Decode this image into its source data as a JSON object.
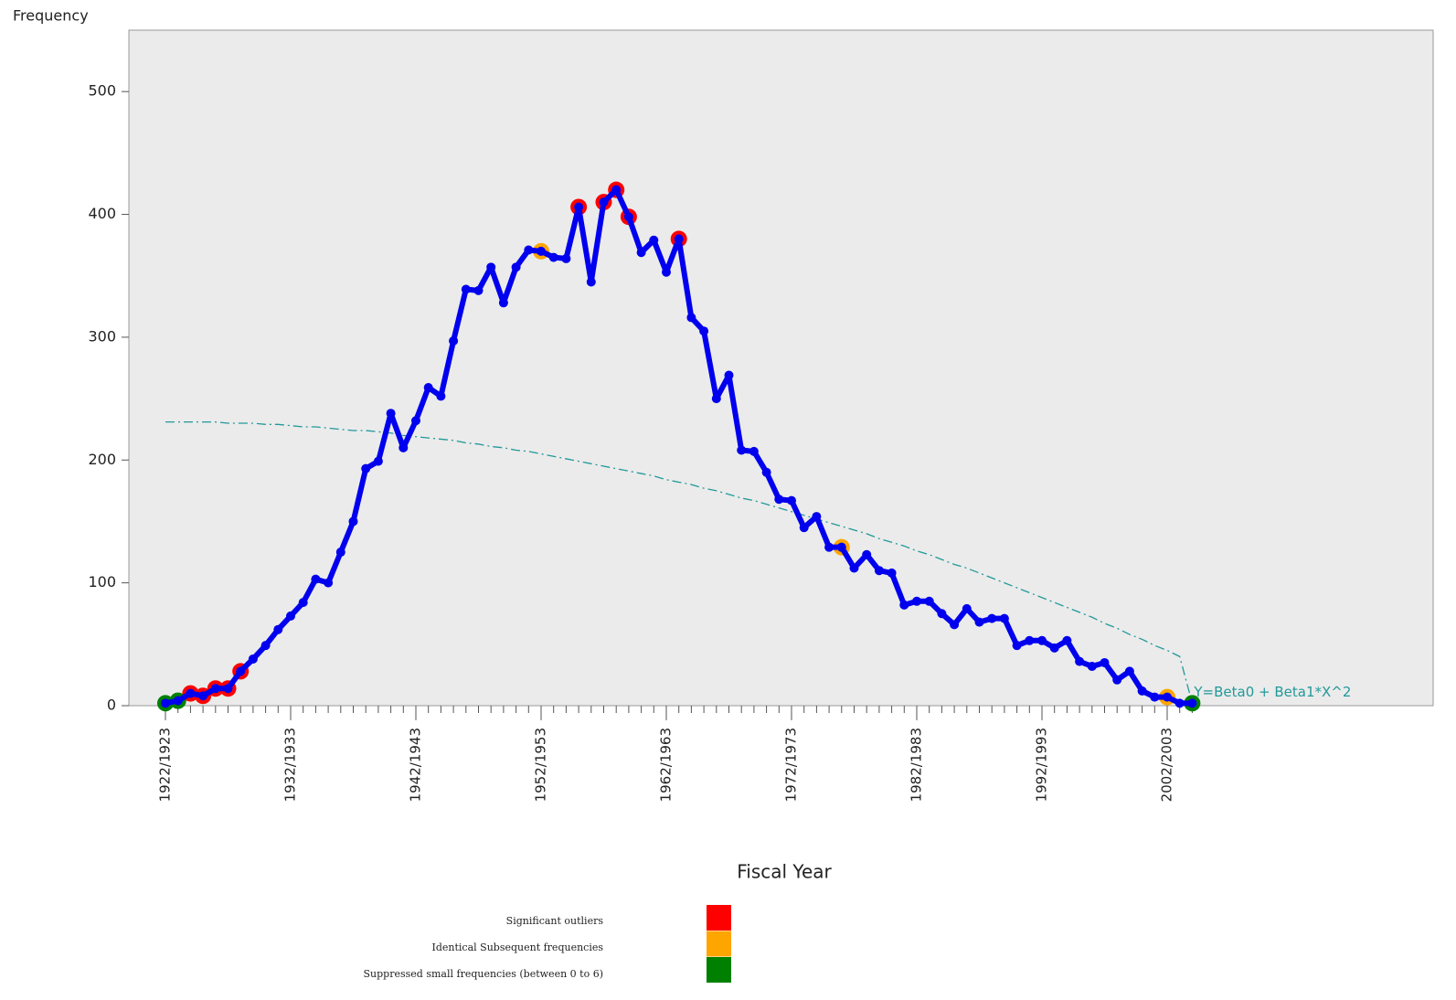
{
  "chart_data": {
    "type": "line",
    "y_label": "Frequency",
    "x_label": "Fiscal Year",
    "categories": [
      "1922/1923",
      null,
      null,
      null,
      null,
      null,
      null,
      null,
      null,
      null,
      "1932/1933",
      null,
      null,
      null,
      null,
      null,
      null,
      null,
      null,
      null,
      "1942/1943",
      null,
      null,
      null,
      null,
      null,
      null,
      null,
      null,
      null,
      "1952/1953",
      null,
      null,
      null,
      null,
      null,
      null,
      null,
      null,
      null,
      "1962/1963",
      null,
      null,
      null,
      null,
      null,
      null,
      null,
      null,
      null,
      "1972/1973",
      null,
      null,
      null,
      null,
      null,
      null,
      null,
      null,
      null,
      "1982/1983",
      null,
      null,
      null,
      null,
      null,
      null,
      null,
      null,
      null,
      "1992/1993",
      null,
      null,
      null,
      null,
      null,
      null,
      null,
      null,
      null,
      "2002/2003",
      null,
      null
    ],
    "values": [
      2,
      4,
      10,
      8,
      14,
      14,
      28,
      38,
      49,
      62,
      73,
      84,
      103,
      100,
      125,
      150,
      193,
      199,
      238,
      210,
      232,
      259,
      252,
      297,
      339,
      338,
      357,
      328,
      357,
      371,
      370,
      365,
      364,
      406,
      345,
      410,
      420,
      398,
      369,
      379,
      353,
      380,
      316,
      305,
      250,
      269,
      208,
      207,
      190,
      168,
      167,
      145,
      154,
      129,
      129,
      112,
      123,
      110,
      108,
      82,
      85,
      85,
      75,
      66,
      79,
      68,
      71,
      71,
      49,
      53,
      53,
      47,
      53,
      36,
      32,
      35,
      21,
      28,
      12,
      7,
      7,
      2,
      2
    ],
    "color": "#0000ee",
    "series": [
      {
        "name": "Significant outliers",
        "color": "#ff0000",
        "values": [
          null,
          null,
          10,
          8,
          14,
          14,
          28,
          null,
          null,
          null,
          null,
          null,
          null,
          null,
          null,
          null,
          null,
          null,
          null,
          null,
          null,
          null,
          null,
          null,
          null,
          null,
          null,
          null,
          null,
          null,
          null,
          null,
          null,
          406,
          null,
          410,
          420,
          398,
          null,
          null,
          null,
          380,
          null,
          null,
          null,
          null,
          null,
          null,
          null,
          null,
          null,
          null,
          null,
          null,
          null,
          null,
          null,
          null,
          null,
          null,
          null,
          null,
          null,
          null,
          null,
          null,
          null,
          null,
          null,
          null,
          null,
          null,
          null,
          null,
          null,
          null,
          null,
          null,
          null,
          null,
          null,
          null,
          null
        ]
      },
      {
        "name": "Identical Subsequent frequencies",
        "color": "#ffa500",
        "values": [
          null,
          null,
          null,
          null,
          null,
          null,
          null,
          null,
          null,
          null,
          null,
          null,
          null,
          null,
          null,
          null,
          null,
          null,
          null,
          null,
          null,
          null,
          null,
          null,
          null,
          null,
          null,
          null,
          null,
          null,
          370,
          null,
          null,
          null,
          null,
          null,
          null,
          null,
          null,
          null,
          null,
          null,
          null,
          null,
          null,
          null,
          null,
          null,
          null,
          null,
          null,
          null,
          null,
          null,
          129,
          null,
          null,
          null,
          null,
          null,
          null,
          null,
          null,
          null,
          null,
          null,
          null,
          null,
          null,
          null,
          null,
          null,
          null,
          null,
          null,
          null,
          null,
          null,
          null,
          null,
          7,
          null,
          null
        ]
      },
      {
        "name": "Suppressed small frequencies (between 0 to 6)",
        "color": "#008000",
        "values": [
          2,
          4,
          null,
          null,
          null,
          null,
          null,
          null,
          null,
          null,
          null,
          null,
          null,
          null,
          null,
          null,
          null,
          null,
          null,
          null,
          null,
          null,
          null,
          null,
          null,
          null,
          null,
          null,
          null,
          null,
          null,
          null,
          null,
          null,
          null,
          null,
          null,
          null,
          null,
          null,
          null,
          null,
          null,
          null,
          null,
          null,
          null,
          null,
          null,
          null,
          null,
          null,
          null,
          null,
          null,
          null,
          null,
          null,
          null,
          null,
          null,
          null,
          null,
          null,
          null,
          null,
          null,
          null,
          null,
          null,
          null,
          null,
          null,
          null,
          null,
          null,
          null,
          null,
          null,
          null,
          null,
          null,
          2
        ]
      }
    ],
    "fit_line": {
      "label": "Y=Beta0 + Beta1*X^2",
      "color": "#229999",
      "values": [
        231,
        231,
        231,
        231,
        231,
        230,
        230,
        230,
        229,
        229,
        228,
        227,
        227,
        226,
        225,
        224,
        224,
        223,
        222,
        220,
        219,
        218,
        217,
        216,
        214,
        213,
        211,
        210,
        208,
        207,
        205,
        203,
        201,
        199,
        197,
        195,
        193,
        191,
        189,
        187,
        184,
        182,
        180,
        177,
        175,
        172,
        169,
        167,
        164,
        161,
        158,
        155,
        152,
        149,
        146,
        143,
        140,
        136,
        133,
        130,
        126,
        123,
        119,
        115,
        112,
        108,
        104,
        100,
        96,
        92,
        88,
        84,
        80,
        76,
        72,
        67,
        63,
        58,
        54,
        49,
        45,
        40,
        2
      ]
    },
    "ylim": [
      0,
      550
    ],
    "yticks": [
      0,
      100,
      200,
      300,
      400,
      500
    ],
    "background": "#ebebeb"
  }
}
